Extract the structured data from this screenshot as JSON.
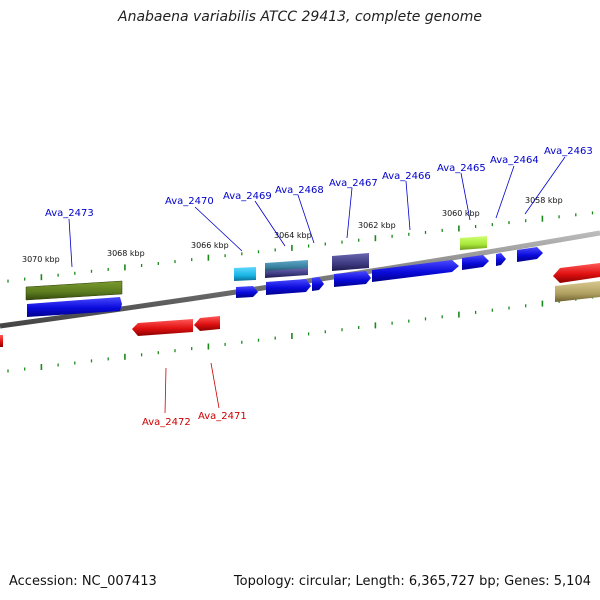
{
  "title": "Anabaena variabilis ATCC 29413, complete genome",
  "footer": {
    "accession": "Accession: NC_007413",
    "summary": "Topology: circular; Length: 6,365,727 bp; Genes: 5,104"
  },
  "scale_labels": [
    "3070 kbp",
    "3068 kbp",
    "3066 kbp",
    "3064 kbp",
    "3062 kbp",
    "3060 kbp",
    "3058 kbp"
  ],
  "gene_labels": {
    "forward": [
      "Ava_2473",
      "Ava_2470",
      "Ava_2469",
      "Ava_2468",
      "Ava_2467",
      "Ava_2466",
      "Ava_2465",
      "Ava_2464",
      "Ava_2463"
    ],
    "reverse": [
      "Ava_2472",
      "Ava_2471"
    ]
  },
  "colors": {
    "forward_label": "#0000cc",
    "reverse_label": "#cc0000",
    "cds_forward": "#0a0adc",
    "cds_reverse": "#e01010",
    "olive_feature": "#5a7a1e",
    "cyan_feature": "#19b5e6",
    "teal_feature": "#3a7fa0",
    "purple_feature": "#3e3a80",
    "lime_feature": "#a6e63a",
    "tan_feature": "#b0a060",
    "backbone": "#777777",
    "tick": "#1a8a1a"
  }
}
